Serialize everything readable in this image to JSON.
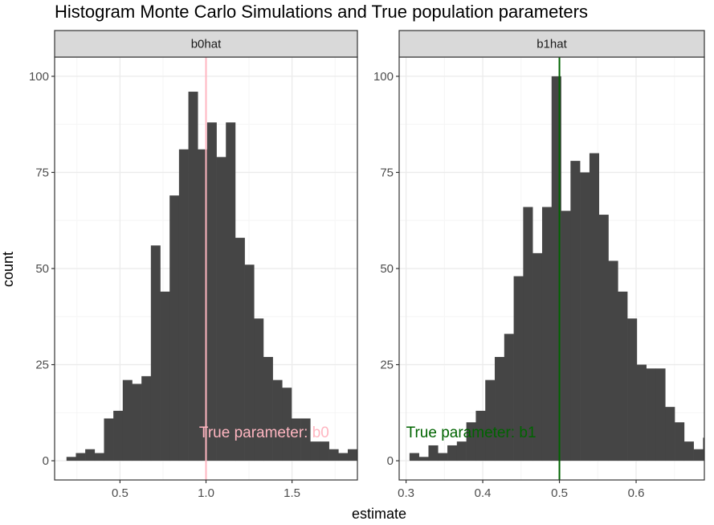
{
  "chart_data": {
    "type": "bar",
    "title": "Histogram Monte Carlo Simulations and True population parameters",
    "xlabel": "estimate",
    "ylabel": "count",
    "grid": true,
    "colors": {
      "bars": "#454545",
      "strip": "#d9d9d9",
      "border": "#333333",
      "grid_major": "#ebebeb",
      "grid_minor": "#f5f5f5"
    },
    "facets": [
      {
        "strip_label": "b0hat",
        "xlim": [
          0.12,
          1.88
        ],
        "ylim": [
          -5,
          105
        ],
        "xticks": [
          0.5,
          1.0,
          1.5
        ],
        "xtick_labels": [
          "0.5",
          "1.0",
          "1.5"
        ],
        "yticks": [
          0,
          25,
          50,
          75,
          100
        ],
        "ytick_labels": [
          "0",
          "25",
          "50",
          "75",
          "100"
        ],
        "bin_start": 0.189,
        "bin_width": 0.0545,
        "counts": [
          1,
          2,
          3,
          2,
          11,
          13,
          21,
          20,
          22,
          56,
          44,
          69,
          81,
          96,
          81,
          88,
          79,
          88,
          58,
          51,
          37,
          27,
          21,
          19,
          11,
          11,
          5,
          5,
          3,
          2,
          3,
          1
        ],
        "true_value": 1.0,
        "line_color": "#ffb6c1",
        "annotation": "True parameter:  b0",
        "annotation_x": 0.96,
        "annotation_y": 7.5
      },
      {
        "strip_label": "b1hat",
        "xlim": [
          0.291,
          0.689
        ],
        "ylim": [
          -5,
          105
        ],
        "xticks": [
          0.3,
          0.4,
          0.5,
          0.6
        ],
        "xtick_labels": [
          "0.3",
          "0.4",
          "0.5",
          "0.6"
        ],
        "yticks": [
          0,
          25,
          50,
          75,
          100
        ],
        "ytick_labels": [
          "0",
          "25",
          "50",
          "75",
          "100"
        ],
        "bin_start": 0.3045,
        "bin_width": 0.01235,
        "counts": [
          2,
          1,
          4,
          2,
          4,
          5,
          10,
          13,
          21,
          27,
          33,
          48,
          66,
          54,
          66,
          100,
          65,
          78,
          75,
          80,
          64,
          52,
          44,
          37,
          25,
          24,
          24,
          14,
          10,
          5,
          3,
          6,
          3
        ],
        "true_value": 0.5,
        "line_color": "#006400",
        "annotation": "True parameter:  b1",
        "annotation_x": 0.3,
        "annotation_y": 7.5
      }
    ]
  }
}
